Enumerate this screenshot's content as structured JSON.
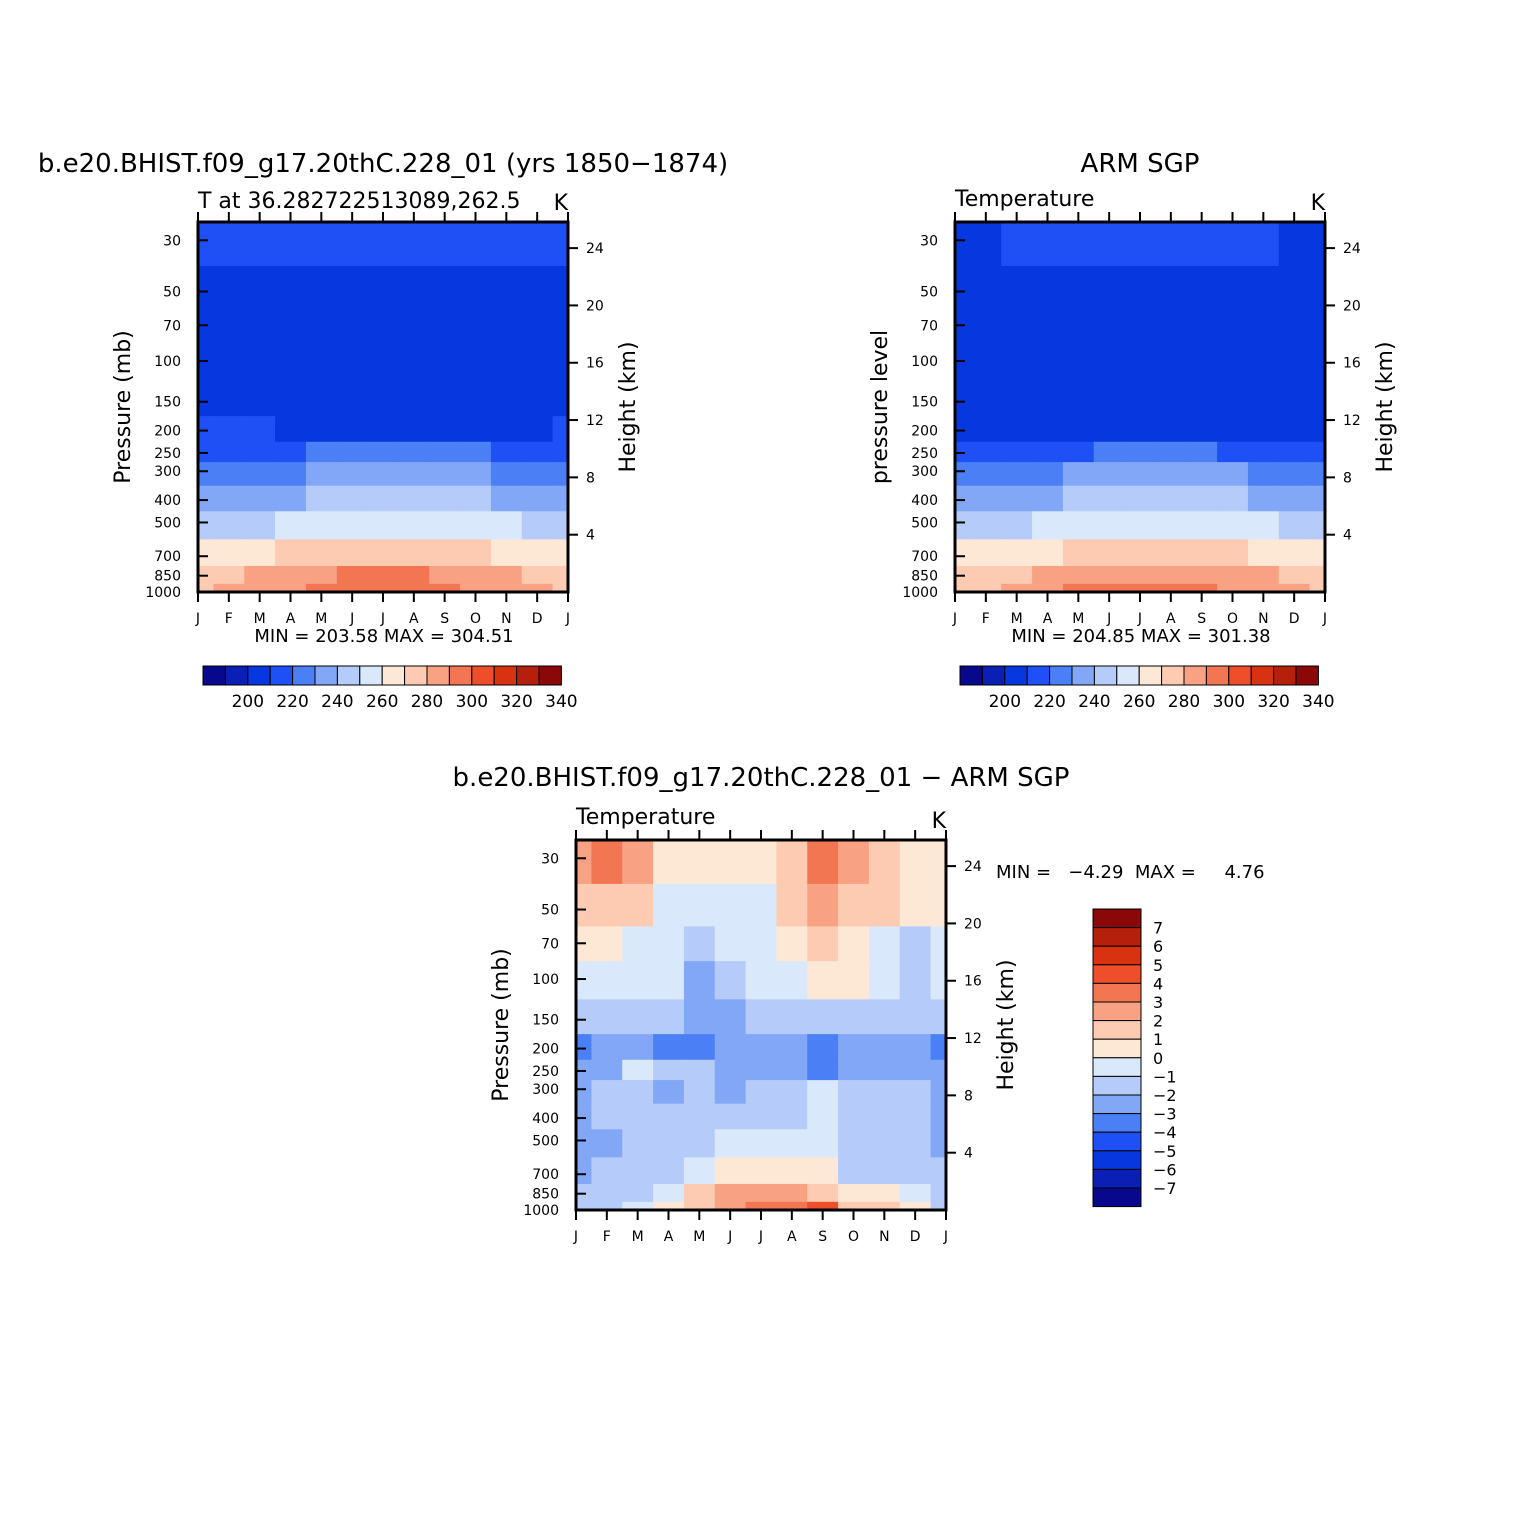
{
  "figure": {
    "type": "heatmap",
    "description_text": null
  },
  "chart_data": [
    {
      "type": "heatmap",
      "title": "b.e20.BHIST.f09_g17.20thC.228_01 (yrs 1850−1874)",
      "left_label": "T at 36.282722513089,262.5",
      "right_label": "K",
      "ylabel": "Pressure (mb)",
      "y2label": "Height (km)",
      "months": [
        "J",
        "F",
        "M",
        "A",
        "M",
        "J",
        "J",
        "A",
        "S",
        "O",
        "N",
        "D",
        "J"
      ],
      "pressure_ticks": [
        30,
        50,
        70,
        100,
        150,
        200,
        250,
        300,
        400,
        500,
        700,
        850,
        1000
      ],
      "height_ticks": [
        4,
        8,
        12,
        16,
        20,
        24
      ],
      "min_max_text": "MIN = 203.58 MAX = 304.51",
      "colorbar_labels": [
        "200",
        "220",
        "240",
        "260",
        "280",
        "300",
        "320",
        "340"
      ],
      "values": [
        [
          215,
          215,
          216,
          218,
          219,
          220,
          220,
          220,
          219,
          218,
          216,
          215,
          215
        ],
        [
          212,
          212,
          211,
          212,
          213,
          214,
          214,
          214,
          213,
          212,
          212,
          212,
          212
        ],
        [
          209,
          209,
          209,
          210,
          210,
          210,
          210,
          210,
          210,
          210,
          210,
          209,
          209
        ],
        [
          212,
          210,
          209,
          208,
          207,
          207,
          207,
          207,
          207,
          207,
          208,
          210,
          212
        ],
        [
          213,
          212,
          212,
          210,
          207,
          207,
          207,
          207,
          207,
          207,
          208,
          211,
          213
        ],
        [
          215,
          215,
          215,
          214,
          213,
          212,
          212,
          212,
          212,
          213,
          213,
          214,
          215
        ],
        [
          222,
          222,
          223,
          224,
          225,
          226,
          226,
          226,
          225,
          225,
          224,
          223,
          222
        ],
        [
          231,
          231,
          232,
          234,
          236,
          238,
          238,
          238,
          237,
          235,
          234,
          232,
          231
        ],
        [
          241,
          241,
          242,
          244,
          247,
          249,
          250,
          249,
          248,
          246,
          244,
          242,
          241
        ],
        [
          253,
          253,
          254,
          257,
          260,
          262,
          263,
          262,
          261,
          258,
          256,
          254,
          253
        ],
        [
          270,
          271,
          272,
          275,
          278,
          280,
          281,
          280,
          279,
          277,
          274,
          272,
          270
        ],
        [
          282,
          283,
          285,
          288,
          292,
          295,
          296,
          295,
          293,
          290,
          286,
          284,
          282
        ],
        [
          283,
          285,
          288,
          293,
          298,
          302,
          304,
          303,
          299,
          294,
          289,
          285,
          283
        ]
      ]
    },
    {
      "type": "heatmap",
      "title": "ARM SGP",
      "left_label": "Temperature",
      "right_label": "K",
      "ylabel": "pressure level",
      "y2label": "Height (km)",
      "months": [
        "J",
        "F",
        "M",
        "A",
        "M",
        "J",
        "J",
        "A",
        "S",
        "O",
        "N",
        "D",
        "J"
      ],
      "pressure_ticks": [
        30,
        50,
        70,
        100,
        150,
        200,
        250,
        300,
        400,
        500,
        700,
        850,
        1000
      ],
      "height_ticks": [
        4,
        8,
        12,
        16,
        20,
        24
      ],
      "min_max_text": "MIN = 204.85 MAX = 301.38",
      "colorbar_labels": [
        "200",
        "220",
        "240",
        "260",
        "280",
        "300",
        "320",
        "340"
      ],
      "values": [
        [
          214,
          214,
          215,
          216,
          217,
          218,
          219,
          218,
          217,
          216,
          215,
          214,
          214
        ],
        [
          211,
          211,
          211,
          212,
          212,
          212,
          212,
          212,
          212,
          212,
          211,
          211,
          211
        ],
        [
          208,
          208,
          209,
          210,
          210,
          210,
          210,
          210,
          210,
          210,
          210,
          208,
          208
        ],
        [
          210,
          209,
          208,
          208,
          207,
          207,
          207,
          207,
          207,
          207,
          207,
          209,
          210
        ],
        [
          212,
          212,
          211,
          210,
          209,
          208,
          207,
          207,
          207,
          208,
          209,
          211,
          212
        ],
        [
          214,
          214,
          214,
          213,
          212,
          211,
          210,
          210,
          210,
          211,
          212,
          213,
          214
        ],
        [
          221,
          221,
          222,
          223,
          224,
          225,
          226,
          226,
          225,
          224,
          223,
          222,
          221
        ],
        [
          231,
          231,
          231,
          233,
          235,
          237,
          238,
          238,
          237,
          235,
          233,
          232,
          231
        ],
        [
          241,
          241,
          242,
          244,
          246,
          249,
          250,
          249,
          248,
          246,
          244,
          242,
          241
        ],
        [
          253,
          253,
          254,
          256,
          259,
          261,
          262,
          262,
          260,
          258,
          255,
          254,
          253
        ],
        [
          270,
          271,
          272,
          274,
          277,
          279,
          280,
          280,
          278,
          276,
          273,
          271,
          270
        ],
        [
          281,
          282,
          284,
          287,
          290,
          293,
          294,
          293,
          291,
          288,
          285,
          283,
          281
        ],
        [
          283,
          284,
          287,
          291,
          295,
          299,
          301,
          300,
          297,
          292,
          288,
          285,
          283
        ]
      ]
    },
    {
      "type": "heatmap",
      "title": "b.e20.BHIST.f09_g17.20thC.228_01 − ARM SGP",
      "left_label": "Temperature",
      "right_label": "K",
      "ylabel": "Pressure (mb)",
      "y2label": "Height (km)",
      "months": [
        "J",
        "F",
        "M",
        "A",
        "M",
        "J",
        "J",
        "A",
        "S",
        "O",
        "N",
        "D",
        "J"
      ],
      "pressure_ticks": [
        30,
        50,
        70,
        100,
        150,
        200,
        250,
        300,
        400,
        500,
        700,
        850,
        1000
      ],
      "height_ticks": [
        4,
        8,
        12,
        16,
        20,
        24
      ],
      "min_max_text": "MIN =   −4.29  MAX =     4.76",
      "colorbar_labels": [
        "7",
        "6",
        "5",
        "4",
        "3",
        "2",
        "1",
        "0",
        "−1",
        "−2",
        "−3",
        "−4",
        "−5",
        "−6",
        "−7"
      ],
      "values": [
        [
          2.5,
          3.8,
          2.2,
          0.6,
          0.4,
          0.4,
          0.4,
          1.3,
          3.3,
          2.1,
          1.4,
          0.8,
          0.5
        ],
        [
          1.2,
          1.5,
          1.0,
          -0.5,
          -0.8,
          -0.5,
          -0.4,
          1.0,
          2.1,
          1.8,
          1.2,
          0.6,
          0.5
        ],
        [
          0.3,
          0.4,
          -0.3,
          -0.8,
          -1.8,
          -1.0,
          -0.5,
          0.5,
          1.2,
          0.6,
          -0.5,
          -1.5,
          -0.3
        ],
        [
          -0.5,
          -0.6,
          -0.8,
          -1.0,
          -2.5,
          -1.8,
          -1.0,
          -0.3,
          0.3,
          0.0,
          -0.8,
          -1.6,
          -0.5
        ],
        [
          -1.5,
          -1.8,
          -2.0,
          -1.7,
          -2.6,
          -2.2,
          -1.9,
          -1.8,
          -2.0,
          -1.2,
          -1.8,
          -2.0,
          -1.5
        ],
        [
          -3.6,
          -2.8,
          -2.2,
          -3.4,
          -3.2,
          -2.4,
          -2.5,
          -2.6,
          -3.4,
          -2.5,
          -2.4,
          -2.6,
          -3.4
        ],
        [
          -2.8,
          -2.2,
          -0.8,
          -1.8,
          -2.0,
          -2.2,
          -2.4,
          -2.6,
          -3.2,
          -2.5,
          -2.4,
          -2.2,
          -2.6
        ],
        [
          -2.3,
          -1.5,
          -1.3,
          -2.1,
          -1.8,
          -2.1,
          -2.0,
          -1.6,
          -0.8,
          -1.6,
          -1.2,
          -1.6,
          -2.1
        ],
        [
          -2.4,
          -1.8,
          -1.8,
          -2.0,
          -1.6,
          -1.9,
          -1.9,
          -1.4,
          -0.6,
          -1.5,
          -1.6,
          -1.8,
          -2.2
        ],
        [
          -2.3,
          -2.1,
          -2.0,
          -1.8,
          -1.2,
          -0.9,
          -0.9,
          -0.6,
          -0.4,
          -1.4,
          -1.8,
          -2.0,
          -2.2
        ],
        [
          -2.2,
          -2.0,
          -1.8,
          -1.6,
          -0.6,
          0.6,
          0.7,
          0.4,
          0.2,
          -1.3,
          -1.6,
          -1.8,
          -2.0
        ],
        [
          -2.0,
          -1.8,
          -1.4,
          -0.2,
          1.2,
          2.2,
          2.4,
          2.0,
          1.8,
          0.4,
          0.8,
          -0.5,
          -1.8
        ],
        [
          -2.0,
          -1.5,
          -0.6,
          0.4,
          1.6,
          2.8,
          3.4,
          3.0,
          4.2,
          1.0,
          1.6,
          0.2,
          -1.6
        ]
      ]
    }
  ],
  "colors": {
    "temperature_palette": [
      "#08088c",
      "#0a20b4",
      "#0637df",
      "#1e50f5",
      "#4a7ff5",
      "#82a7f7",
      "#b5cbf9",
      "#d9e9fb",
      "#fde7d5",
      "#fccbb2",
      "#f8a283",
      "#f27651",
      "#ee4f2a",
      "#d93210",
      "#b5200d",
      "#8a0808"
    ],
    "difference_palette": [
      "#08088c",
      "#0a20b4",
      "#0637df",
      "#1e50f5",
      "#4a7ff5",
      "#82a7f7",
      "#b5cbf9",
      "#d9e9fb",
      "#fde7d5",
      "#fccbb2",
      "#f8a283",
      "#f27651",
      "#ee4f2a",
      "#d93210",
      "#b5200d",
      "#8a0808"
    ]
  }
}
